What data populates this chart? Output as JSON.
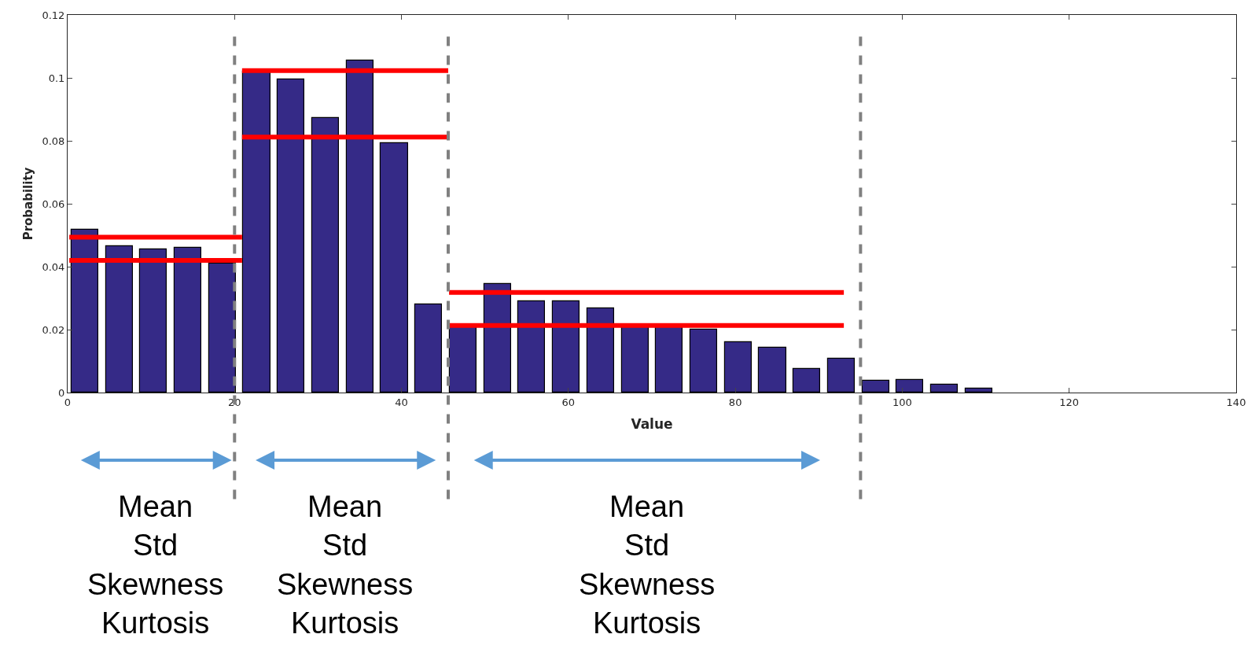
{
  "chart_data": {
    "type": "histogram",
    "xlabel": "Value",
    "ylabel": "Probability",
    "bins": [
      0,
      4.12,
      8.24,
      12.36,
      16.48,
      20.6,
      24.72,
      28.84,
      32.96,
      37.08,
      41.2,
      45.32,
      49.44,
      53.56,
      57.68,
      61.8,
      65.92,
      70.04,
      74.16,
      78.28,
      82.4,
      86.52,
      90.64,
      94.76,
      98.88,
      103.0,
      107.12,
      111.24
    ],
    "values": [
      0.0518,
      0.0466,
      0.0456,
      0.046,
      0.041,
      0.1019,
      0.0995,
      0.0873,
      0.1056,
      0.0792,
      0.028,
      0.0215,
      0.0344,
      0.0291,
      0.0291,
      0.0267,
      0.021,
      0.021,
      0.0199,
      0.0161,
      0.0143,
      0.0076,
      0.0108,
      0.0038,
      0.0041,
      0.0024,
      0.0013
    ],
    "color": "#352a87",
    "series": [
      {
        "type": "line",
        "color": "#ff0000",
        "x": [
          0.2,
          20.9
        ],
        "values": [
          0.0494,
          0.0494
        ]
      },
      {
        "type": "line",
        "color": "#ff0000",
        "x": [
          0.2,
          20.9
        ],
        "values": [
          0.042,
          0.042
        ]
      },
      {
        "type": "line",
        "color": "#ff0000",
        "x": [
          20.9,
          45.6
        ],
        "values": [
          0.1023,
          0.1023
        ]
      },
      {
        "type": "line",
        "color": "#ff0000",
        "x": [
          20.9,
          45.6
        ],
        "values": [
          0.0812,
          0.0812
        ]
      },
      {
        "type": "line",
        "color": "#ff0000",
        "x": [
          45.7,
          93.0
        ],
        "values": [
          0.0318,
          0.0318
        ]
      },
      {
        "type": "line",
        "color": "#ff0000",
        "x": [
          45.7,
          93.0
        ],
        "values": [
          0.0213,
          0.0213
        ]
      }
    ],
    "ref_lines": [
      {
        "axis": "x",
        "value": 20,
        "color": "#808080",
        "line_style": "dashed"
      },
      {
        "axis": "x",
        "value": 45.6,
        "color": "#808080",
        "line_style": "dashed"
      },
      {
        "axis": "x",
        "value": 95,
        "color": "#808080",
        "line_style": "dashed"
      }
    ],
    "annotations": [
      "Mean\nStd\nSkewness\nKurtosis",
      "Mean\nStd\nSkewness\nKurtosis",
      "Mean\nStd\nSkewness\nKurtosis"
    ],
    "xlim": [
      0,
      140
    ],
    "xticks": [
      0,
      20,
      40,
      60,
      80,
      100,
      120,
      140
    ],
    "ylim": [
      0,
      0.12
    ],
    "yticks": [
      0,
      0.02,
      0.04,
      0.06,
      0.08,
      0.1,
      0.12
    ]
  }
}
